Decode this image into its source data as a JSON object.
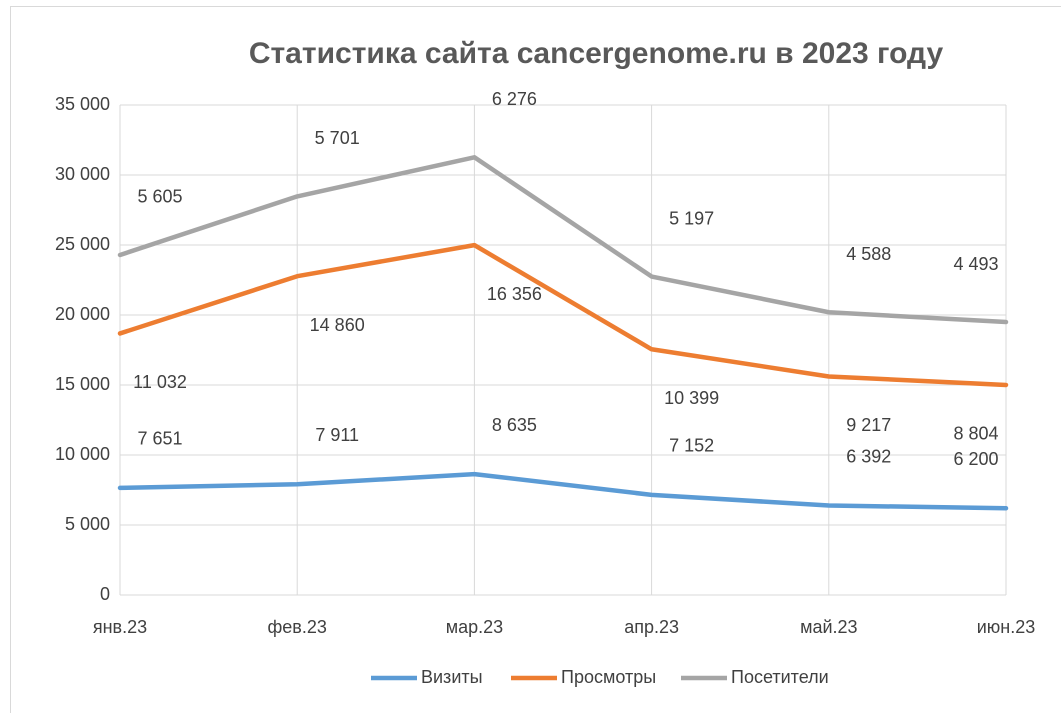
{
  "chart_data": {
    "type": "line",
    "stacked": true,
    "title": "Статистика сайта cancergenome.ru в 2023 году",
    "categories": [
      "янв.23",
      "фев.23",
      "мар.23",
      "апр.23",
      "май.23",
      "июн.23"
    ],
    "series": [
      {
        "name": "Визиты",
        "color": "#5b9bd5",
        "values": [
          7651,
          7911,
          8635,
          7152,
          6392,
          6200
        ],
        "value_labels": [
          "7 651",
          "7 911",
          "8 635",
          "7 152",
          "6 392",
          "6 200"
        ]
      },
      {
        "name": "Просмотры",
        "color": "#ed7d31",
        "values": [
          11032,
          14860,
          16356,
          10399,
          9217,
          8804
        ],
        "value_labels": [
          "11 032",
          "14 860",
          "16 356",
          "10 399",
          "9 217",
          "8 804"
        ]
      },
      {
        "name": "Посетители",
        "color": "#a5a5a5",
        "values": [
          5605,
          5701,
          6276,
          5197,
          4588,
          4493
        ],
        "value_labels": [
          "5 605",
          "5 701",
          "6 276",
          "5 197",
          "4 588",
          "4 493"
        ]
      }
    ],
    "ylim": [
      0,
      35000
    ],
    "yticks": [
      0,
      {
        "value": 5000,
        "label": "5 000"
      },
      {
        "value": 10000,
        "label": "10 000"
      },
      {
        "value": 15000,
        "label": "15 000"
      },
      {
        "value": 20000,
        "label": "20 000"
      },
      {
        "value": 25000,
        "label": "25 000"
      },
      {
        "value": 30000,
        "label": "30 000"
      },
      {
        "value": 35000,
        "label": "35 000"
      }
    ],
    "grid": true,
    "legend": "bottom"
  }
}
